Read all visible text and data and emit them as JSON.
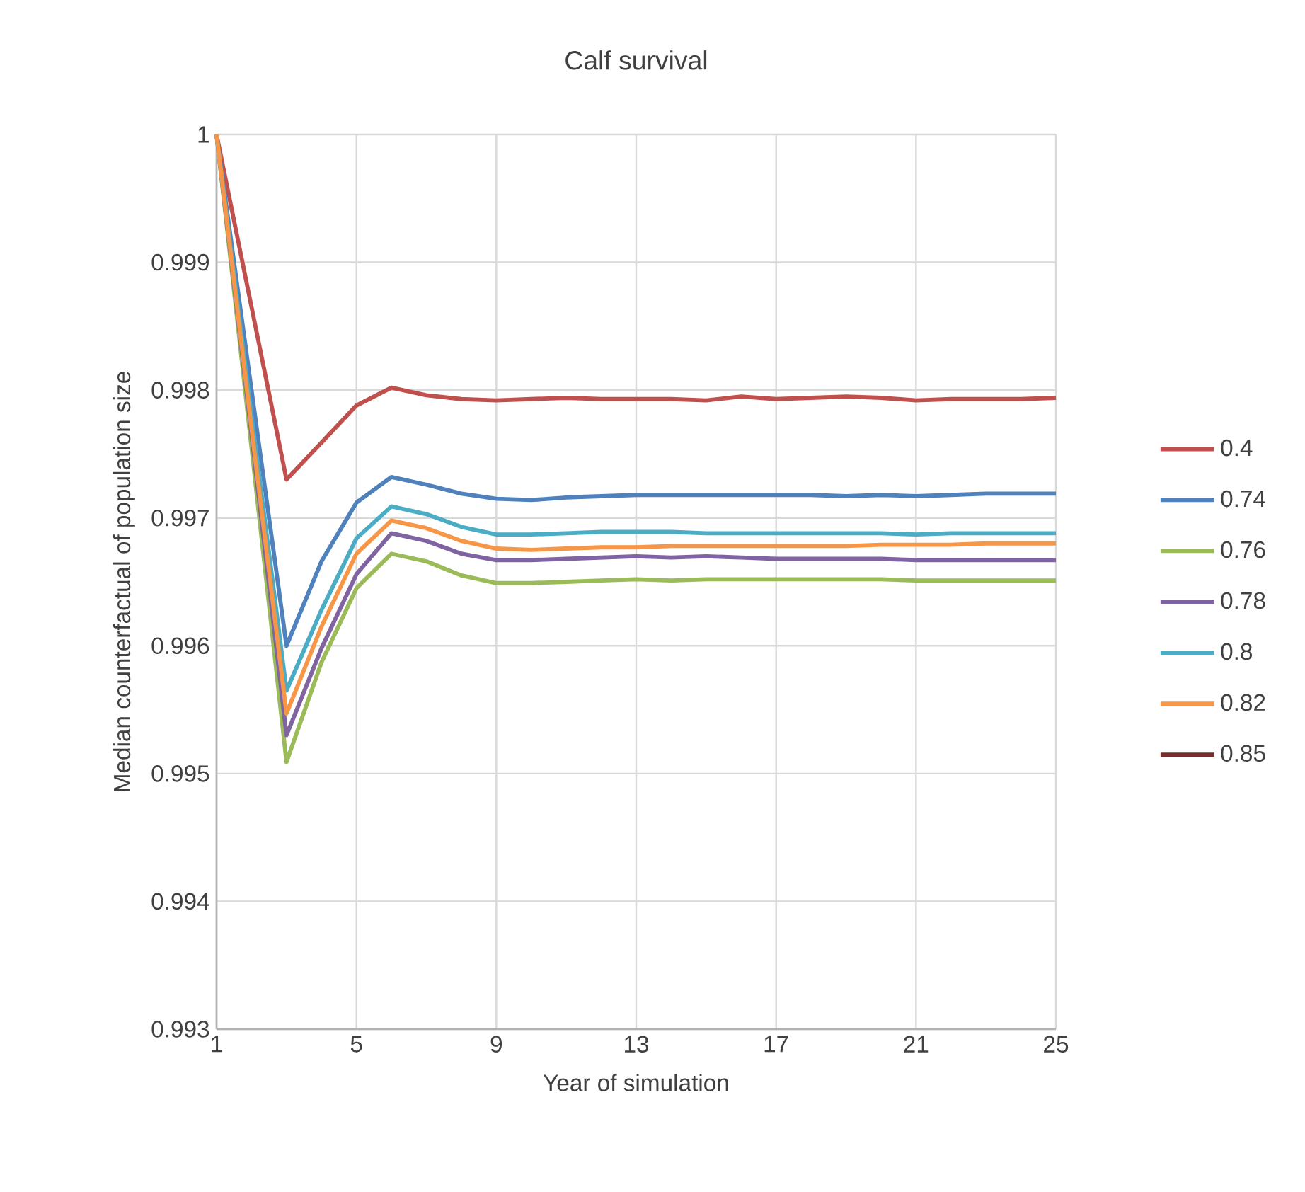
{
  "chart_data": {
    "type": "line",
    "title": "Calf survival",
    "xlabel": "Year of simulation",
    "ylabel": "Median counterfactual of population size",
    "x": [
      1,
      2,
      3,
      4,
      5,
      6,
      7,
      8,
      9,
      10,
      11,
      12,
      13,
      14,
      15,
      16,
      17,
      18,
      19,
      20,
      21,
      22,
      23,
      24,
      25
    ],
    "xlim": [
      1,
      25
    ],
    "xticks": [
      1,
      5,
      9,
      13,
      17,
      21,
      25
    ],
    "ylim": [
      0.993,
      1
    ],
    "yticks": [
      0.993,
      0.994,
      0.995,
      0.996,
      0.997,
      0.998,
      0.999,
      1
    ],
    "grid": true,
    "legend": "right",
    "line_style": "solid",
    "marker": "none",
    "series": [
      {
        "name": "0.4",
        "color": "#c0504d",
        "values": [
          1,
          0.99865,
          0.9973,
          0.99759,
          0.99788,
          0.99802,
          0.99796,
          0.99793,
          0.99792,
          0.99793,
          0.99794,
          0.99793,
          0.99793,
          0.99793,
          0.99792,
          0.99795,
          0.99793,
          0.99794,
          0.99795,
          0.99794,
          0.99792,
          0.99793,
          0.99793,
          0.99793,
          0.99794
        ]
      },
      {
        "name": "0.74",
        "color": "#4f81bd",
        "values": [
          1,
          0.998,
          0.996,
          0.99666,
          0.99712,
          0.99732,
          0.99726,
          0.99719,
          0.99715,
          0.99714,
          0.99716,
          0.99717,
          0.99718,
          0.99718,
          0.99718,
          0.99718,
          0.99718,
          0.99718,
          0.99717,
          0.99718,
          0.99717,
          0.99718,
          0.99719,
          0.99719,
          0.99719
        ]
      },
      {
        "name": "0.76",
        "color": "#9bbb59",
        "values": [
          1,
          0.99755,
          0.99509,
          0.99587,
          0.99645,
          0.99672,
          0.99666,
          0.99655,
          0.99649,
          0.99649,
          0.9965,
          0.99651,
          0.99652,
          0.99651,
          0.99652,
          0.99652,
          0.99652,
          0.99652,
          0.99652,
          0.99652,
          0.99651,
          0.99651,
          0.99651,
          0.99651,
          0.99651
        ]
      },
      {
        "name": "0.78",
        "color": "#8064a2",
        "values": [
          1,
          0.99765,
          0.9953,
          0.99598,
          0.99656,
          0.99688,
          0.99682,
          0.99672,
          0.99667,
          0.99667,
          0.99668,
          0.99669,
          0.9967,
          0.99669,
          0.9967,
          0.99669,
          0.99668,
          0.99668,
          0.99668,
          0.99668,
          0.99667,
          0.99667,
          0.99667,
          0.99667,
          0.99667
        ]
      },
      {
        "name": "0.8",
        "color": "#4bacc6",
        "values": [
          1,
          0.9978,
          0.99565,
          0.99628,
          0.99684,
          0.99709,
          0.99703,
          0.99693,
          0.99687,
          0.99687,
          0.99688,
          0.99689,
          0.99689,
          0.99689,
          0.99688,
          0.99688,
          0.99688,
          0.99688,
          0.99688,
          0.99688,
          0.99687,
          0.99688,
          0.99688,
          0.99688,
          0.99688
        ]
      },
      {
        "name": "0.82",
        "color": "#f79646",
        "values": [
          1,
          0.9977,
          0.99547,
          0.99615,
          0.99672,
          0.99698,
          0.99692,
          0.99682,
          0.99676,
          0.99675,
          0.99676,
          0.99677,
          0.99677,
          0.99678,
          0.99678,
          0.99678,
          0.99678,
          0.99678,
          0.99678,
          0.99679,
          0.99679,
          0.99679,
          0.9968,
          0.9968,
          0.9968
        ]
      },
      {
        "name": "0.85",
        "color": "#772c2a",
        "values": [
          null,
          null,
          null,
          null,
          null,
          null,
          null,
          null,
          null,
          null,
          null,
          null,
          null,
          null,
          null,
          null,
          null,
          null,
          null,
          null,
          null,
          null,
          null,
          null,
          null
        ]
      }
    ]
  }
}
